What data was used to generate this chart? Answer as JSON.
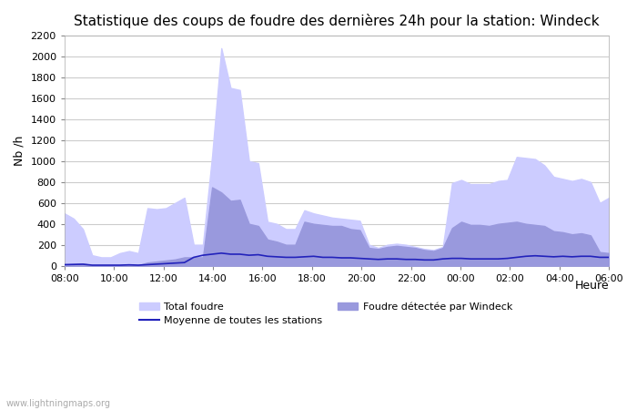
{
  "title": "Statistique des coups de foudre des dernières 24h pour la station: Windeck",
  "ylabel": "Nb /h",
  "xlabel": "Heure",
  "watermark": "www.lightningmaps.org",
  "ylim": [
    0,
    2200
  ],
  "yticks": [
    0,
    200,
    400,
    600,
    800,
    1000,
    1200,
    1400,
    1600,
    1800,
    2000,
    2200
  ],
  "x_labels": [
    "08:00",
    "10:00",
    "12:00",
    "14:00",
    "16:00",
    "18:00",
    "20:00",
    "22:00",
    "00:00",
    "02:00",
    "04:00",
    "06:00"
  ],
  "color_total": "#ccccff",
  "color_windeck": "#9999dd",
  "color_moyenne": "#2222bb",
  "background_color": "#ffffff",
  "grid_color": "#cccccc",
  "title_fontsize": 11,
  "total_foudre": [
    500,
    450,
    350,
    100,
    80,
    80,
    120,
    140,
    120,
    550,
    540,
    550,
    600,
    650,
    200,
    200,
    1050,
    2080,
    1700,
    1680,
    1000,
    980,
    420,
    400,
    350,
    350,
    530,
    500,
    480,
    460,
    450,
    440,
    430,
    200,
    170,
    200,
    210,
    200,
    180,
    160,
    150,
    180,
    790,
    820,
    780,
    780,
    780,
    810,
    820,
    1040,
    1030,
    1020,
    960,
    850,
    830,
    810,
    830,
    800,
    600,
    650
  ],
  "windeck_foudre": [
    10,
    15,
    20,
    5,
    5,
    5,
    5,
    10,
    5,
    30,
    40,
    50,
    60,
    80,
    80,
    80,
    750,
    700,
    620,
    630,
    400,
    380,
    250,
    230,
    200,
    200,
    420,
    400,
    390,
    380,
    380,
    350,
    340,
    170,
    160,
    180,
    190,
    180,
    170,
    150,
    140,
    170,
    360,
    420,
    390,
    390,
    380,
    400,
    410,
    420,
    400,
    390,
    380,
    330,
    320,
    300,
    310,
    290,
    130,
    120
  ],
  "moyenne": [
    10,
    12,
    14,
    5,
    5,
    5,
    5,
    8,
    5,
    10,
    15,
    20,
    25,
    30,
    80,
    100,
    110,
    120,
    110,
    110,
    100,
    105,
    90,
    85,
    80,
    80,
    85,
    90,
    80,
    80,
    75,
    75,
    70,
    65,
    60,
    65,
    65,
    60,
    60,
    55,
    55,
    65,
    70,
    70,
    65,
    65,
    65,
    65,
    70,
    80,
    90,
    95,
    90,
    85,
    90,
    85,
    90,
    90,
    80,
    80
  ]
}
